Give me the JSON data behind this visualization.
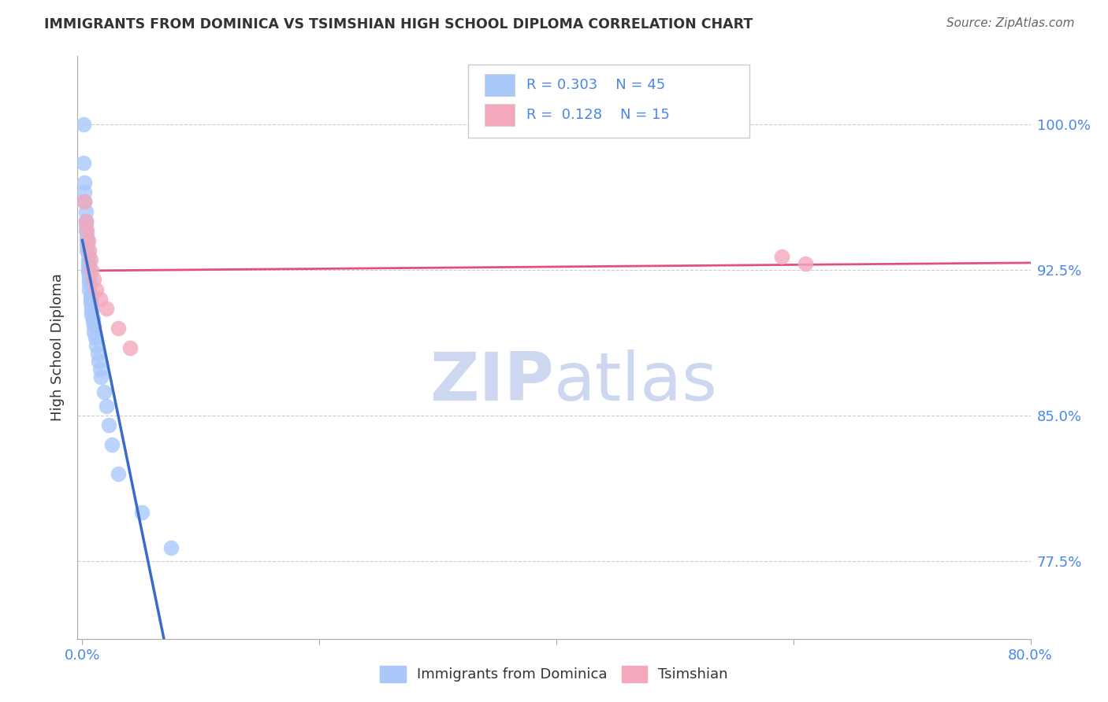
{
  "title": "IMMIGRANTS FROM DOMINICA VS TSIMSHIAN HIGH SCHOOL DIPLOMA CORRELATION CHART",
  "source": "Source: ZipAtlas.com",
  "ylabel": "High School Diploma",
  "xlim": [
    -0.004,
    0.8
  ],
  "ylim": [
    0.735,
    1.035
  ],
  "yticks": [
    0.775,
    0.85,
    0.925,
    1.0
  ],
  "ytick_labels": [
    "77.5%",
    "85.0%",
    "92.5%",
    "100.0%"
  ],
  "xticks": [
    0.0,
    0.2,
    0.4,
    0.6,
    0.8
  ],
  "xtick_labels": [
    "0.0%",
    "",
    "",
    "",
    "80.0%"
  ],
  "blue_R": 0.303,
  "blue_N": 45,
  "pink_R": 0.128,
  "pink_N": 15,
  "blue_color": "#a8c8fa",
  "pink_color": "#f4a8bc",
  "blue_line_color": "#3a6bc8",
  "pink_line_color": "#e05080",
  "legend_label_blue": "Immigrants from Dominica",
  "legend_label_pink": "Tsimshian",
  "background_color": "#ffffff",
  "watermark_color": "#cdd8f0",
  "grid_color": "#cccccc",
  "axis_color": "#aaaaaa",
  "text_color": "#333333",
  "blue_label_color": "#4a86e8",
  "source_color": "#666666"
}
